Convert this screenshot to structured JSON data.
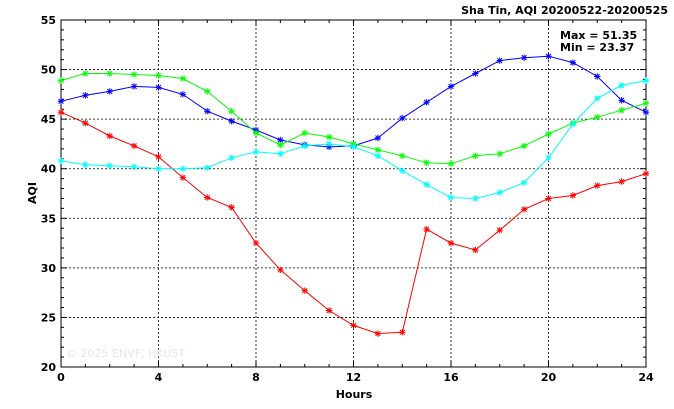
{
  "chart_data": {
    "type": "line",
    "title": "Sha Tin, AQI 20200522-20200525",
    "xlabel": "Hours",
    "ylabel": "AQI",
    "xlim": [
      0,
      24
    ],
    "ylim": [
      20,
      55
    ],
    "xticks": [
      0,
      4,
      8,
      12,
      16,
      20,
      24
    ],
    "yticks": [
      20,
      25,
      30,
      35,
      40,
      45,
      50,
      55
    ],
    "xtick_labels": [
      "0",
      "4",
      "8",
      "12",
      "16",
      "20",
      "24"
    ],
    "ytick_labels": [
      "20",
      "25",
      "30",
      "35",
      "40",
      "45",
      "50",
      "55"
    ],
    "grid": true,
    "annotations": {
      "max": "Max = 51.35",
      "min": "Min = 23.37"
    },
    "watermark": "© 2025  ENVF, HKUST",
    "x": [
      0,
      1,
      2,
      3,
      4,
      5,
      6,
      7,
      8,
      9,
      10,
      11,
      12,
      13,
      14,
      15,
      16,
      17,
      18,
      19,
      20,
      21,
      22,
      23,
      24
    ],
    "series": [
      {
        "color": "#0000ff",
        "values": [
          46.8,
          47.4,
          47.8,
          48.3,
          48.2,
          47.5,
          45.8,
          44.8,
          43.9,
          42.9,
          42.4,
          42.2,
          42.3,
          43.1,
          45.1,
          46.7,
          48.3,
          49.6,
          50.9,
          51.2,
          51.35,
          50.7,
          49.3,
          46.9,
          45.7
        ]
      },
      {
        "color": "#ff0000",
        "values": [
          45.7,
          44.6,
          43.3,
          42.3,
          41.2,
          39.1,
          37.1,
          36.1,
          32.5,
          29.8,
          27.7,
          25.7,
          24.2,
          23.37,
          23.5,
          33.9,
          32.5,
          31.8,
          33.8,
          35.9,
          37.0,
          37.3,
          38.3,
          38.7,
          39.5
        ]
      },
      {
        "color": "#00ff00",
        "values": [
          48.9,
          49.6,
          49.6,
          49.5,
          49.4,
          49.1,
          47.8,
          45.8,
          43.6,
          42.4,
          43.6,
          43.2,
          42.5,
          41.9,
          41.3,
          40.6,
          40.5,
          41.3,
          41.5,
          42.3,
          43.5,
          44.6,
          45.2,
          45.9,
          46.6
        ]
      },
      {
        "color": "#00ffff",
        "values": [
          40.8,
          40.4,
          40.3,
          40.2,
          40.0,
          40.0,
          40.1,
          41.1,
          41.7,
          41.5,
          42.3,
          42.5,
          42.2,
          41.3,
          39.8,
          38.4,
          37.1,
          37.0,
          37.6,
          38.6,
          41.1,
          44.5,
          47.1,
          48.4,
          48.9
        ]
      }
    ]
  }
}
